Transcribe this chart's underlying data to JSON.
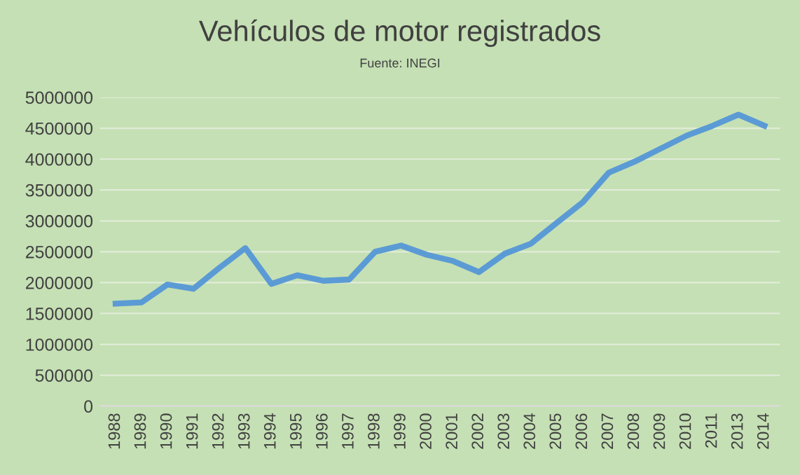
{
  "chart_data": {
    "type": "line",
    "title": "Vehículos de motor registrados",
    "subtitle": "Fuente: INEGI",
    "categories": [
      "1988",
      "1989",
      "1990",
      "1991",
      "1992",
      "1993",
      "1994",
      "1995",
      "1996",
      "1997",
      "1998",
      "1999",
      "2000",
      "2001",
      "2002",
      "2003",
      "2004",
      "2005",
      "2006",
      "2007",
      "2008",
      "2009",
      "2010",
      "2011",
      "2013",
      "2014"
    ],
    "series": [
      {
        "color": "#5b9bd5",
        "values": [
          1660000,
          1680000,
          1970000,
          1900000,
          2240000,
          2560000,
          1980000,
          2120000,
          2030000,
          2050000,
          2500000,
          2600000,
          2450000,
          2350000,
          2170000,
          2470000,
          2630000,
          2970000,
          3300000,
          3780000,
          3960000,
          4170000,
          4380000,
          4540000,
          4720000,
          4540000
        ]
      }
    ],
    "ylim": [
      0,
      5000000
    ],
    "yticks": [
      0,
      500000,
      1000000,
      1500000,
      2000000,
      2500000,
      3000000,
      3500000,
      4000000,
      4500000,
      5000000
    ],
    "grid": "y",
    "legend": false,
    "marker": "none",
    "line_style": "solid"
  }
}
